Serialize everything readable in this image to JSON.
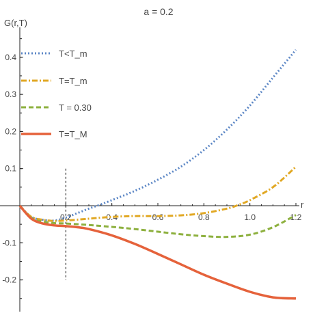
{
  "chart_data": {
    "type": "line",
    "title": "a = 0.2",
    "xlabel": "r",
    "ylabel": "G(r,T)",
    "xlim": [
      0,
      1.2
    ],
    "ylim": [
      -0.26,
      0.45
    ],
    "x_ticks": [
      "0.2",
      "0.4",
      "0.6",
      "0.8",
      "1.0",
      "1.2"
    ],
    "x_tick_values": [
      0.2,
      0.4,
      0.6,
      0.8,
      1.0,
      1.2
    ],
    "y_ticks": [
      "0.4",
      "0.3",
      "0.2",
      "0.1",
      "-0.1",
      "-0.2"
    ],
    "y_tick_values": [
      0.4,
      0.3,
      0.2,
      0.1,
      -0.1,
      -0.2
    ],
    "grid": false,
    "legend_placement": "top-left",
    "reference_line": {
      "x": 0.2,
      "y_from": 0.1,
      "y_to": -0.2,
      "style": "dashed",
      "color": "#000000"
    },
    "series": [
      {
        "name": "T<T_m",
        "color": "#5b86c5",
        "style": "dotted",
        "points": [
          [
            0,
            0
          ],
          [
            0.05,
            -0.03
          ],
          [
            0.1,
            -0.038
          ],
          [
            0.15,
            -0.04
          ],
          [
            0.2,
            -0.032
          ],
          [
            0.25,
            -0.02
          ],
          [
            0.3,
            -0.008
          ],
          [
            0.35,
            0.003
          ],
          [
            0.4,
            0.015
          ],
          [
            0.5,
            0.04
          ],
          [
            0.6,
            0.07
          ],
          [
            0.7,
            0.105
          ],
          [
            0.8,
            0.15
          ],
          [
            0.9,
            0.205
          ],
          [
            1.0,
            0.27
          ],
          [
            1.1,
            0.345
          ],
          [
            1.2,
            0.42
          ]
        ]
      },
      {
        "name": "T=T_m",
        "color": "#e1a824",
        "style": "dashdot",
        "points": [
          [
            0,
            0
          ],
          [
            0.05,
            -0.03
          ],
          [
            0.1,
            -0.038
          ],
          [
            0.15,
            -0.041
          ],
          [
            0.2,
            -0.04
          ],
          [
            0.3,
            -0.035
          ],
          [
            0.4,
            -0.03
          ],
          [
            0.5,
            -0.028
          ],
          [
            0.6,
            -0.028
          ],
          [
            0.7,
            -0.026
          ],
          [
            0.8,
            -0.02
          ],
          [
            0.9,
            -0.008
          ],
          [
            0.95,
            0.002
          ],
          [
            1.0,
            0.015
          ],
          [
            1.1,
            0.05
          ],
          [
            1.2,
            0.105
          ]
        ]
      },
      {
        "name": "T = 0.30",
        "color": "#8db03e",
        "style": "dashed",
        "points": [
          [
            0,
            0
          ],
          [
            0.05,
            -0.033
          ],
          [
            0.1,
            -0.043
          ],
          [
            0.15,
            -0.047
          ],
          [
            0.2,
            -0.048
          ],
          [
            0.3,
            -0.052
          ],
          [
            0.4,
            -0.057
          ],
          [
            0.5,
            -0.063
          ],
          [
            0.6,
            -0.07
          ],
          [
            0.7,
            -0.077
          ],
          [
            0.8,
            -0.082
          ],
          [
            0.9,
            -0.084
          ],
          [
            1.0,
            -0.078
          ],
          [
            1.1,
            -0.058
          ],
          [
            1.2,
            -0.025
          ]
        ]
      },
      {
        "name": "T=T_M",
        "color": "#e5623b",
        "style": "solid",
        "points": [
          [
            0,
            0
          ],
          [
            0.05,
            -0.035
          ],
          [
            0.1,
            -0.048
          ],
          [
            0.15,
            -0.053
          ],
          [
            0.2,
            -0.055
          ],
          [
            0.25,
            -0.058
          ],
          [
            0.3,
            -0.063
          ],
          [
            0.4,
            -0.08
          ],
          [
            0.5,
            -0.103
          ],
          [
            0.6,
            -0.13
          ],
          [
            0.7,
            -0.158
          ],
          [
            0.8,
            -0.186
          ],
          [
            0.9,
            -0.21
          ],
          [
            1.0,
            -0.232
          ],
          [
            1.1,
            -0.247
          ],
          [
            1.2,
            -0.25
          ]
        ]
      }
    ]
  }
}
